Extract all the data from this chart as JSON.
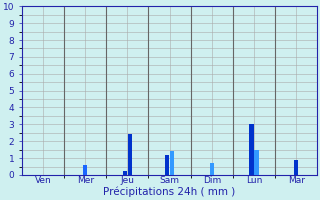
{
  "background_color": "#cff0f0",
  "grid_color": "#aaaaaa",
  "xlabel": "Précipitations 24h ( mm )",
  "ylim": [
    0,
    10
  ],
  "yticks": [
    0,
    1,
    2,
    3,
    4,
    5,
    6,
    7,
    8,
    9,
    10
  ],
  "groups": [
    "Ven",
    "Mer",
    "Jeu",
    "Sam",
    "Dim",
    "Lun",
    "Mar"
  ],
  "bars": [
    {
      "group": "Ven",
      "bars": []
    },
    {
      "group": "Mer",
      "bars": [
        {
          "val": 0.6,
          "color": "#1a66ff"
        }
      ]
    },
    {
      "group": "Jeu",
      "bars": [
        {
          "val": 0.25,
          "color": "#0033cc"
        },
        {
          "val": 2.4,
          "color": "#0033cc"
        }
      ]
    },
    {
      "group": "Sam",
      "bars": [
        {
          "val": 1.2,
          "color": "#0033cc"
        },
        {
          "val": 1.4,
          "color": "#3399ff"
        }
      ]
    },
    {
      "group": "Dim",
      "bars": [
        {
          "val": 0.7,
          "color": "#3399ff"
        }
      ]
    },
    {
      "group": "Lun",
      "bars": [
        {
          "val": 3.0,
          "color": "#0033cc"
        },
        {
          "val": 1.5,
          "color": "#3399ff"
        }
      ]
    },
    {
      "group": "Mar",
      "bars": [
        {
          "val": 0.9,
          "color": "#0033cc"
        }
      ]
    }
  ],
  "vline_color": "#666666",
  "axis_color": "#2222aa",
  "tick_color": "#2222aa",
  "xlabel_color": "#2222aa",
  "xlabel_fontsize": 7.5,
  "tick_fontsize": 6.5,
  "bar_width": 0.12,
  "group_width": 1.0
}
